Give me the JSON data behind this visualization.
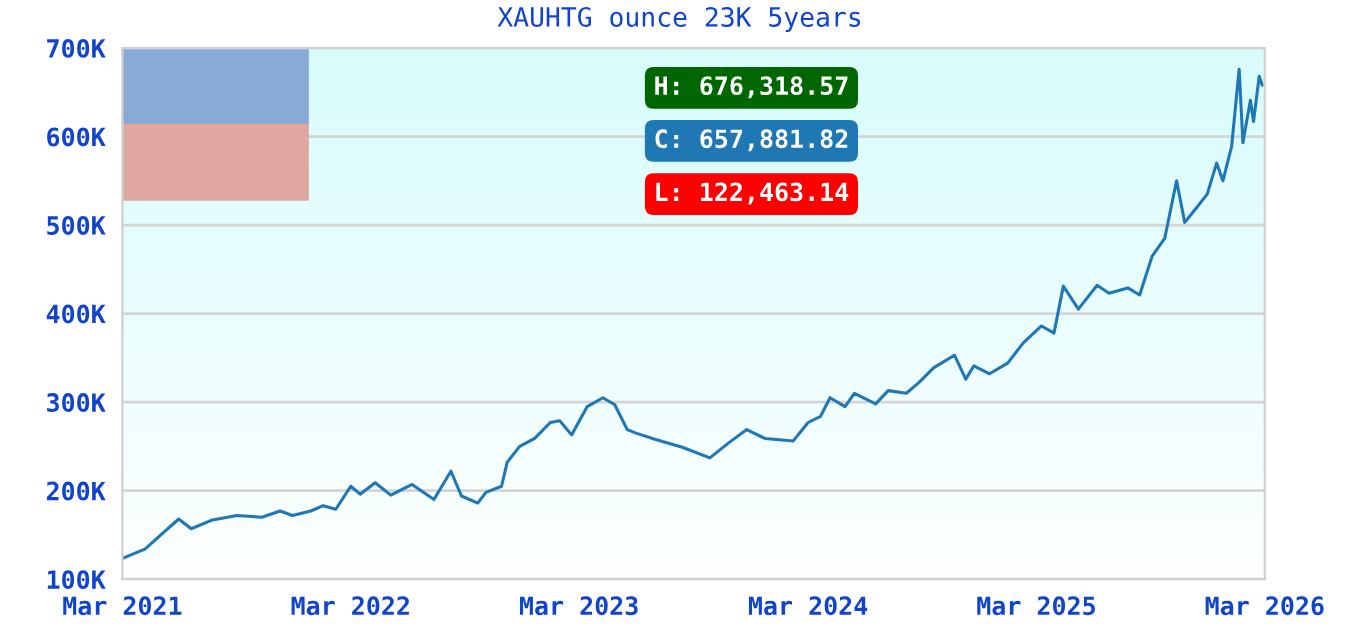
{
  "chart_data": {
    "type": "line",
    "title": "XAUHTG ounce 23K 5years",
    "x": [
      "2021-03-03",
      "2021-04-06",
      "2021-05-06",
      "2021-05-30",
      "2021-06-19",
      "2021-07-23",
      "2021-08-31",
      "2021-10-10",
      "2021-11-08",
      "2021-11-28",
      "2021-12-27",
      "2022-01-16",
      "2022-02-05",
      "2022-03-01",
      "2022-03-16",
      "2022-04-09",
      "2022-05-04",
      "2022-06-07",
      "2022-07-12",
      "2022-08-08",
      "2022-08-25",
      "2022-09-20",
      "2022-10-03",
      "2022-10-28",
      "2022-11-06",
      "2022-11-26",
      "2022-12-20",
      "2023-01-14",
      "2023-01-29",
      "2023-02-17",
      "2023-03-14",
      "2023-04-08",
      "2023-04-27",
      "2023-05-17",
      "2023-05-31",
      "2023-06-30",
      "2023-08-13",
      "2023-09-26",
      "2023-10-26",
      "2023-11-24",
      "2023-12-23",
      "2024-02-06",
      "2024-03-01",
      "2024-03-21",
      "2024-04-05",
      "2024-04-29",
      "2024-05-14",
      "2024-06-17",
      "2024-07-07",
      "2024-08-05",
      "2024-08-25",
      "2024-09-18",
      "2024-10-21",
      "2024-11-08",
      "2024-11-21",
      "2024-12-16",
      "2025-01-14",
      "2025-02-08",
      "2025-03-09",
      "2025-03-29",
      "2025-04-13",
      "2025-05-07",
      "2025-06-06",
      "2025-06-25",
      "2025-07-25",
      "2025-08-13",
      "2025-09-02",
      "2025-09-22",
      "2025-10-11",
      "2025-10-24",
      "2025-11-09",
      "2025-11-29",
      "2025-12-14",
      "2025-12-24",
      "2026-01-07",
      "2026-01-19",
      "2026-01-25",
      "2026-02-06",
      "2026-02-11",
      "2026-02-20",
      "2026-02-25"
    ],
    "series": [
      {
        "color": "#1f77b4",
        "values": [
          124000,
          134000,
          153000,
          168000,
          157000,
          167000,
          172000,
          170000,
          177000,
          172000,
          177000,
          183000,
          179000,
          205000,
          196000,
          209000,
          195000,
          207000,
          190000,
          222000,
          194000,
          186000,
          198000,
          205000,
          232000,
          250000,
          259000,
          277000,
          279000,
          263000,
          295000,
          305000,
          297000,
          269000,
          265000,
          258000,
          249000,
          237000,
          254000,
          269000,
          259000,
          256000,
          277000,
          284000,
          305000,
          295000,
          310000,
          298000,
          313000,
          310000,
          322000,
          339000,
          353000,
          326000,
          341000,
          332000,
          344000,
          367000,
          386000,
          378000,
          431000,
          405000,
          432000,
          423000,
          429000,
          421000,
          465000,
          485000,
          550000,
          503000,
          517000,
          535000,
          570000,
          550000,
          589000,
          676000,
          593000,
          641000,
          617000,
          668000,
          658000
        ]
      }
    ],
    "xlim": [
      "2021-03-01",
      "2026-03-01"
    ],
    "xticks": [
      {
        "value": "2021-03-01",
        "label": "Mar 2021"
      },
      {
        "value": "2022-03-01",
        "label": "Mar 2022"
      },
      {
        "value": "2023-03-01",
        "label": "Mar 2023"
      },
      {
        "value": "2024-03-01",
        "label": "Mar 2024"
      },
      {
        "value": "2025-03-01",
        "label": "Mar 2025"
      },
      {
        "value": "2026-03-01",
        "label": "Mar 2026"
      }
    ],
    "ylim": [
      100000,
      700000
    ],
    "yticks": [
      {
        "value": 100000,
        "label": "100K"
      },
      {
        "value": 200000,
        "label": "200K"
      },
      {
        "value": 300000,
        "label": "300K"
      },
      {
        "value": 400000,
        "label": "400K"
      },
      {
        "value": 500000,
        "label": "500K"
      },
      {
        "value": 600000,
        "label": "600K"
      },
      {
        "value": 700000,
        "label": "700K"
      }
    ],
    "grid": "y",
    "annotations": [
      "H: 676,318.57",
      "C: 657,881.82",
      "L: 122,463.14"
    ]
  }
}
